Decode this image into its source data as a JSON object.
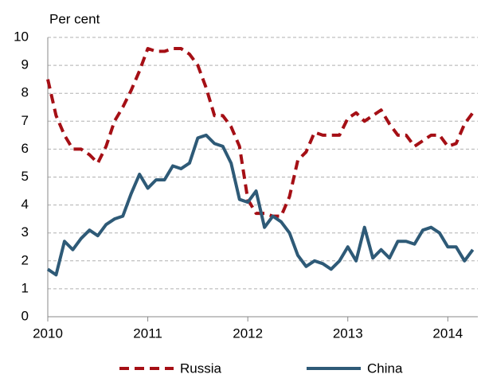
{
  "chart_data": {
    "type": "line",
    "y_label": "Per cent",
    "x": [
      2010,
      2010.083,
      2010.167,
      2010.25,
      2010.333,
      2010.417,
      2010.5,
      2010.583,
      2010.667,
      2010.75,
      2010.833,
      2010.917,
      2011,
      2011.083,
      2011.167,
      2011.25,
      2011.333,
      2011.417,
      2011.5,
      2011.583,
      2011.667,
      2011.75,
      2011.833,
      2011.917,
      2012,
      2012.083,
      2012.167,
      2012.25,
      2012.333,
      2012.417,
      2012.5,
      2012.583,
      2012.667,
      2012.75,
      2012.833,
      2012.917,
      2013,
      2013.083,
      2013.167,
      2013.25,
      2013.333,
      2013.417,
      2013.5,
      2013.583,
      2013.667,
      2013.75,
      2013.833,
      2013.917,
      2014,
      2014.083,
      2014.167,
      2014.25
    ],
    "series": [
      {
        "name": "Russia",
        "color": "#a50f15",
        "dash": true,
        "values": [
          8.5,
          7.2,
          6.5,
          6.0,
          6.0,
          5.8,
          5.5,
          6.1,
          7.0,
          7.5,
          8.1,
          8.8,
          9.6,
          9.5,
          9.5,
          9.6,
          9.6,
          9.4,
          9.0,
          8.2,
          7.2,
          7.2,
          6.8,
          6.1,
          4.2,
          3.7,
          3.7,
          3.6,
          3.6,
          4.3,
          5.6,
          5.9,
          6.6,
          6.5,
          6.5,
          6.5,
          7.1,
          7.3,
          7.0,
          7.2,
          7.4,
          6.9,
          6.5,
          6.5,
          6.1,
          6.3,
          6.5,
          6.5,
          6.1,
          6.2,
          6.9,
          7.3
        ]
      },
      {
        "name": "China",
        "color": "#2e5a77",
        "dash": false,
        "values": [
          1.7,
          1.5,
          2.7,
          2.4,
          2.8,
          3.1,
          2.9,
          3.3,
          3.5,
          3.6,
          4.4,
          5.1,
          4.6,
          4.9,
          4.9,
          5.4,
          5.3,
          5.5,
          6.4,
          6.5,
          6.2,
          6.1,
          5.5,
          4.2,
          4.1,
          4.5,
          3.2,
          3.6,
          3.4,
          3.0,
          2.2,
          1.8,
          2.0,
          1.9,
          1.7,
          2.0,
          2.5,
          2.0,
          3.2,
          2.1,
          2.4,
          2.1,
          2.7,
          2.7,
          2.6,
          3.1,
          3.2,
          3.0,
          2.5,
          2.5,
          2.0,
          2.4
        ]
      }
    ],
    "xlim": [
      2010,
      2014.3
    ],
    "xticks": [
      2010,
      2011,
      2012,
      2013,
      2014
    ],
    "ylim": [
      0,
      10
    ],
    "yticks": [
      0,
      1,
      2,
      3,
      4,
      5,
      6,
      7,
      8,
      9,
      10
    ],
    "grid": true,
    "legend": "bottom"
  }
}
